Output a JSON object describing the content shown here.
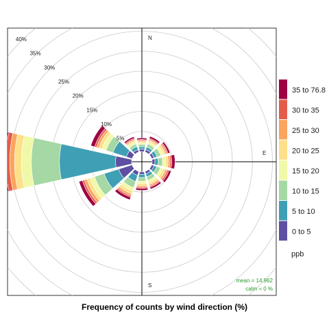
{
  "chart_data": {
    "type": "polar-stacked-bar",
    "title": "",
    "xlabel": "Frequency of counts by wind direction (%)",
    "rlim": [
      0,
      40
    ],
    "ring_ticks": [
      5,
      10,
      15,
      20,
      25,
      30,
      35,
      40
    ],
    "ring_tick_labels": [
      "5%",
      "10%",
      "15%",
      "20%",
      "25%",
      "30%",
      "35%",
      "40%"
    ],
    "compass_labels": {
      "N": "N",
      "E": "E",
      "S": "S"
    },
    "legend": {
      "title": "ppb",
      "placement": "right",
      "bins": [
        "0 to 5",
        "5 to 10",
        "10 to 15",
        "15 to 20",
        "20 to 25",
        "25 to 30",
        "30 to 35",
        "35 to 76.8"
      ],
      "colors": [
        "#5e4fa2",
        "#3f9fb4",
        "#a5d8a4",
        "#f0f9a8",
        "#fde089",
        "#fba45e",
        "#e35c4a",
        "#9e0142"
      ]
    },
    "directions": [
      0,
      30,
      60,
      90,
      120,
      150,
      180,
      210,
      240,
      270,
      300,
      330
    ],
    "series": [
      {
        "bin": "0 to 5",
        "values": [
          0.6,
          0.6,
          0.6,
          0.7,
          0.6,
          0.6,
          0.6,
          1.0,
          3.5,
          4.0,
          1.5,
          0.6
        ]
      },
      {
        "bin": "5 to 10",
        "values": [
          0.6,
          0.7,
          0.8,
          0.8,
          0.7,
          0.8,
          0.8,
          1.6,
          3.8,
          14.0,
          3.5,
          0.8
        ]
      },
      {
        "bin": "10 to 15",
        "values": [
          0.6,
          0.8,
          1.0,
          1.1,
          1.0,
          0.9,
          0.9,
          1.6,
          2.5,
          7.0,
          1.8,
          0.7
        ]
      },
      {
        "bin": "15 to 20",
        "values": [
          0.4,
          0.5,
          0.7,
          0.8,
          0.7,
          0.6,
          0.6,
          0.9,
          1.2,
          2.5,
          1.1,
          0.5
        ]
      },
      {
        "bin": "20 to 25",
        "values": [
          0.3,
          0.4,
          0.5,
          0.6,
          0.6,
          0.5,
          0.5,
          0.7,
          0.8,
          1.7,
          0.8,
          0.4
        ]
      },
      {
        "bin": "25 to 30",
        "values": [
          0.3,
          0.3,
          0.4,
          0.5,
          0.5,
          0.4,
          0.4,
          0.5,
          0.7,
          1.2,
          0.6,
          0.3
        ]
      },
      {
        "bin": "30 to 35",
        "values": [
          0.2,
          0.3,
          0.3,
          0.4,
          0.4,
          0.3,
          0.3,
          0.4,
          0.5,
          1.0,
          0.5,
          0.3
        ]
      },
      {
        "bin": "35 to 76.8",
        "values": [
          0.4,
          0.5,
          0.5,
          0.8,
          0.6,
          0.5,
          0.5,
          0.7,
          0.9,
          1.3,
          1.0,
          0.4
        ]
      }
    ],
    "stats": {
      "mean": "mean =  14.962",
      "calm": "calm =  0 %"
    }
  }
}
